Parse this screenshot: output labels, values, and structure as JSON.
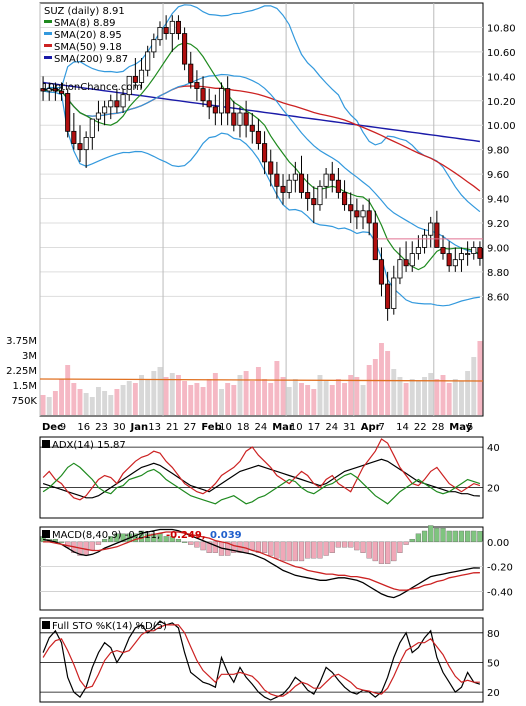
{
  "chart_data": [
    {
      "type": "candlestick",
      "title": "SUZ (daily) 8.91",
      "watermark": "10ptionChance.com",
      "legend": [
        {
          "label": "SMA(8) 8.89",
          "color": "#1f8a1f"
        },
        {
          "label": "SMA(20) 8.95",
          "color": "#3399dd"
        },
        {
          "label": "SMA(50) 9.18",
          "color": "#cc2222"
        },
        {
          "label": "SMA(200) 9.87",
          "color": "#1a1aa8"
        }
      ],
      "ylim": [
        8.3,
        11.0
      ],
      "price_ticks": [
        "10.80",
        "10.60",
        "10.40",
        "10.20",
        "10.00",
        "9.80",
        "9.60",
        "9.40",
        "9.20",
        "9.00",
        "8.80",
        "8.60"
      ],
      "volume_ticks": [
        "3.75M",
        "3M",
        "2.25M",
        "1.5M",
        "750K"
      ],
      "volume_ylim": [
        0,
        4000000
      ],
      "x_tick_labels": [
        "Dec",
        "9",
        "16",
        "23",
        "30",
        "Jan",
        "13",
        "21",
        "27",
        "Feb",
        "10",
        "18",
        "24",
        "Mar",
        "10",
        "17",
        "24",
        "31",
        "Apr",
        "7",
        "14",
        "22",
        "28",
        "May",
        "5"
      ],
      "candles": {
        "open": [
          10.3,
          10.28,
          10.3,
          10.28,
          10.26,
          9.95,
          9.85,
          9.8,
          9.9,
          10.05,
          10.1,
          10.15,
          10.2,
          10.15,
          10.25,
          10.4,
          10.35,
          10.45,
          10.6,
          10.7,
          10.8,
          10.75,
          10.85,
          10.75,
          10.5,
          10.35,
          10.3,
          10.2,
          10.15,
          10.1,
          10.3,
          10.1,
          10.0,
          10.1,
          10.0,
          9.95,
          9.85,
          9.7,
          9.6,
          9.5,
          9.45,
          9.55,
          9.6,
          9.45,
          9.4,
          9.35,
          9.5,
          9.6,
          9.55,
          9.45,
          9.35,
          9.3,
          9.25,
          9.3,
          9.2,
          8.9,
          8.7,
          8.5,
          8.75,
          8.9,
          8.85,
          8.95,
          9.0,
          9.1,
          9.2,
          9.0,
          8.95,
          8.85,
          8.9,
          8.95,
          8.95,
          9.0
        ],
        "high": [
          10.4,
          10.35,
          10.35,
          10.35,
          10.3,
          10.1,
          10.0,
          9.95,
          10.05,
          10.2,
          10.2,
          10.25,
          10.3,
          10.3,
          10.4,
          10.55,
          10.55,
          10.65,
          10.75,
          10.85,
          10.9,
          10.9,
          10.9,
          10.8,
          10.6,
          10.45,
          10.4,
          10.3,
          10.25,
          10.35,
          10.4,
          10.2,
          10.15,
          10.2,
          10.1,
          10.05,
          9.95,
          9.8,
          9.7,
          9.6,
          9.6,
          9.7,
          9.75,
          9.6,
          9.5,
          9.55,
          9.65,
          9.7,
          9.65,
          9.55,
          9.45,
          9.4,
          9.35,
          9.4,
          9.3,
          9.0,
          8.8,
          8.85,
          9.0,
          9.05,
          9.05,
          9.1,
          9.15,
          9.25,
          9.3,
          9.1,
          9.05,
          9.0,
          9.0,
          9.05,
          9.05,
          9.05
        ],
        "low": [
          10.2,
          10.2,
          10.2,
          10.2,
          9.9,
          9.8,
          9.7,
          9.65,
          9.8,
          9.95,
          10.0,
          10.05,
          10.1,
          10.1,
          10.2,
          10.3,
          10.3,
          10.4,
          10.55,
          10.65,
          10.7,
          10.6,
          10.7,
          10.45,
          10.3,
          10.2,
          10.15,
          10.05,
          10.0,
          10.0,
          10.0,
          9.95,
          9.9,
          9.9,
          9.85,
          9.8,
          9.6,
          9.5,
          9.4,
          9.35,
          9.4,
          9.45,
          9.4,
          9.3,
          9.2,
          9.3,
          9.4,
          9.45,
          9.4,
          9.3,
          9.2,
          9.15,
          9.15,
          9.1,
          8.9,
          8.6,
          8.4,
          8.45,
          8.7,
          8.8,
          8.8,
          8.9,
          8.95,
          9.0,
          9.0,
          8.9,
          8.8,
          8.8,
          8.8,
          8.85,
          8.9,
          8.85
        ],
        "close": [
          10.28,
          10.3,
          10.28,
          10.26,
          9.95,
          9.85,
          9.8,
          9.9,
          10.05,
          10.1,
          10.15,
          10.2,
          10.15,
          10.25,
          10.4,
          10.35,
          10.45,
          10.6,
          10.7,
          10.8,
          10.75,
          10.85,
          10.75,
          10.5,
          10.35,
          10.3,
          10.2,
          10.15,
          10.1,
          10.3,
          10.1,
          10.0,
          10.1,
          10.0,
          9.95,
          9.85,
          9.7,
          9.6,
          9.5,
          9.45,
          9.55,
          9.6,
          9.45,
          9.4,
          9.35,
          9.5,
          9.6,
          9.55,
          9.45,
          9.35,
          9.3,
          9.25,
          9.3,
          9.2,
          8.9,
          8.7,
          8.5,
          8.75,
          8.9,
          8.85,
          8.95,
          9.0,
          9.1,
          9.2,
          9.0,
          8.95,
          8.85,
          8.9,
          8.95,
          8.95,
          9.0,
          8.91
        ]
      },
      "volume_millions": [
        1.0,
        0.9,
        1.2,
        1.8,
        2.5,
        1.6,
        1.3,
        1.1,
        0.9,
        1.4,
        1.2,
        1.0,
        1.3,
        1.5,
        1.7,
        1.6,
        2.0,
        1.8,
        2.2,
        2.4,
        1.9,
        2.1,
        2.0,
        1.7,
        1.5,
        1.6,
        1.4,
        1.8,
        2.1,
        1.3,
        1.6,
        1.5,
        2.0,
        2.2,
        1.7,
        2.4,
        1.8,
        1.6,
        2.7,
        1.9,
        1.4,
        1.8,
        1.6,
        1.5,
        1.3,
        2.0,
        1.7,
        1.5,
        1.8,
        1.6,
        2.0,
        1.9,
        1.5,
        2.5,
        2.8,
        3.6,
        3.2,
        2.3,
        1.9,
        1.6,
        1.8,
        1.7,
        1.9,
        2.1,
        1.8,
        2.0,
        1.6,
        1.8,
        1.7,
        2.2,
        2.9,
        3.7
      ],
      "volume_avg_millions": 1.8
    },
    {
      "type": "line",
      "title": "ADX(14) 15.87",
      "ylim": [
        5,
        45
      ],
      "y_ticks": [
        "40",
        "20"
      ],
      "hlines": [
        20,
        40
      ],
      "series": [
        {
          "name": "ADX",
          "color": "#000000",
          "values": [
            22,
            21,
            20,
            19,
            18,
            17,
            16,
            15,
            15,
            16,
            18,
            20,
            22,
            24,
            26,
            28,
            30,
            31,
            32,
            31,
            29,
            27,
            25,
            23,
            21,
            20,
            19,
            18,
            20,
            22,
            24,
            26,
            28,
            29,
            30,
            31,
            30,
            29,
            28,
            27,
            26,
            25,
            24,
            23,
            22,
            21,
            22,
            24,
            26,
            28,
            29,
            30,
            31,
            32,
            33,
            34,
            33,
            31,
            29,
            27,
            25,
            23,
            22,
            21,
            20,
            19,
            18,
            18,
            17,
            17,
            16,
            15.87
          ]
        },
        {
          "name": "+DI",
          "color": "#cc2222",
          "values": [
            25,
            28,
            24,
            22,
            18,
            15,
            14,
            16,
            20,
            24,
            26,
            25,
            22,
            27,
            30,
            33,
            35,
            36,
            38,
            37,
            33,
            30,
            26,
            22,
            20,
            18,
            17,
            19,
            22,
            26,
            28,
            30,
            33,
            38,
            40,
            36,
            33,
            30,
            26,
            24,
            22,
            25,
            28,
            26,
            22,
            20,
            24,
            26,
            22,
            20,
            18,
            24,
            30,
            34,
            38,
            44,
            42,
            36,
            30,
            26,
            22,
            21,
            24,
            28,
            30,
            26,
            22,
            20,
            18,
            20,
            22,
            21
          ]
        },
        {
          "name": "-DI",
          "color": "#1f8a1f",
          "values": [
            18,
            20,
            23,
            26,
            30,
            32,
            30,
            27,
            24,
            20,
            18,
            17,
            20,
            21,
            24,
            25,
            26,
            28,
            29,
            27,
            24,
            22,
            20,
            18,
            16,
            15,
            14,
            13,
            12,
            14,
            15,
            16,
            14,
            12,
            13,
            15,
            16,
            18,
            20,
            22,
            24,
            23,
            20,
            18,
            17,
            19,
            21,
            22,
            24,
            26,
            27,
            25,
            22,
            19,
            16,
            14,
            12,
            15,
            18,
            20,
            22,
            24,
            22,
            20,
            18,
            17,
            18,
            20,
            22,
            24,
            23,
            22
          ]
        }
      ]
    },
    {
      "type": "bar+line",
      "title": "MACD(8,40,9) -0.211,",
      "macd_value": "-0.249,",
      "signal_value": "0.039",
      "macd_value_color": "#cc0000",
      "signal_value_color": "#1f5fcc",
      "ylim": [
        -0.55,
        0.12
      ],
      "y_ticks": [
        "0.00",
        "-0.20",
        "-0.40"
      ],
      "tick_values": [
        0.0,
        -0.2,
        -0.4
      ],
      "macd_line": [
        0.02,
        0.01,
        0.0,
        -0.02,
        -0.05,
        -0.08,
        -0.1,
        -0.11,
        -0.1,
        -0.08,
        -0.05,
        -0.03,
        -0.01,
        0.01,
        0.03,
        0.05,
        0.07,
        0.08,
        0.09,
        0.1,
        0.1,
        0.1,
        0.09,
        0.07,
        0.05,
        0.03,
        0.01,
        -0.01,
        -0.03,
        -0.05,
        -0.06,
        -0.07,
        -0.08,
        -0.09,
        -0.1,
        -0.12,
        -0.14,
        -0.17,
        -0.2,
        -0.23,
        -0.25,
        -0.27,
        -0.28,
        -0.29,
        -0.3,
        -0.31,
        -0.31,
        -0.3,
        -0.29,
        -0.29,
        -0.3,
        -0.31,
        -0.33,
        -0.36,
        -0.39,
        -0.42,
        -0.44,
        -0.45,
        -0.43,
        -0.4,
        -0.37,
        -0.34,
        -0.31,
        -0.28,
        -0.27,
        -0.26,
        -0.25,
        -0.24,
        -0.23,
        -0.22,
        -0.21,
        -0.211
      ],
      "signal_line": [
        0.0,
        0.0,
        -0.01,
        -0.02,
        -0.03,
        -0.04,
        -0.05,
        -0.06,
        -0.07,
        -0.07,
        -0.06,
        -0.05,
        -0.04,
        -0.02,
        0.0,
        0.02,
        0.03,
        0.05,
        0.06,
        0.07,
        0.08,
        0.08,
        0.08,
        0.07,
        0.06,
        0.05,
        0.04,
        0.03,
        0.01,
        0.0,
        -0.01,
        -0.03,
        -0.04,
        -0.05,
        -0.07,
        -0.08,
        -0.1,
        -0.12,
        -0.14,
        -0.16,
        -0.18,
        -0.2,
        -0.21,
        -0.23,
        -0.24,
        -0.25,
        -0.26,
        -0.26,
        -0.27,
        -0.27,
        -0.28,
        -0.28,
        -0.29,
        -0.3,
        -0.32,
        -0.34,
        -0.36,
        -0.38,
        -0.39,
        -0.39,
        -0.38,
        -0.37,
        -0.35,
        -0.34,
        -0.32,
        -0.31,
        -0.29,
        -0.28,
        -0.27,
        -0.26,
        -0.25,
        -0.249
      ],
      "histogram": [
        0.02,
        0.01,
        0.01,
        0.0,
        -0.02,
        -0.04,
        -0.05,
        -0.05,
        -0.03,
        -0.01,
        0.01,
        0.02,
        0.03,
        0.03,
        0.03,
        0.03,
        0.04,
        0.03,
        0.03,
        0.03,
        0.02,
        0.02,
        0.01,
        0.0,
        -0.01,
        -0.02,
        -0.03,
        -0.04,
        -0.04,
        -0.05,
        -0.05,
        -0.04,
        -0.04,
        -0.04,
        -0.03,
        -0.04,
        -0.04,
        -0.05,
        -0.06,
        -0.07,
        -0.07,
        -0.07,
        -0.07,
        -0.06,
        -0.06,
        -0.06,
        -0.05,
        -0.04,
        -0.02,
        -0.02,
        -0.02,
        -0.03,
        -0.04,
        -0.06,
        -0.07,
        -0.08,
        -0.08,
        -0.07,
        -0.04,
        -0.01,
        0.01,
        0.03,
        0.04,
        0.06,
        0.05,
        0.05,
        0.04,
        0.04,
        0.04,
        0.04,
        0.04,
        0.039
      ]
    },
    {
      "type": "line",
      "title": "Full STO %K(14) %D(5)",
      "ylim": [
        10,
        95
      ],
      "y_ticks": [
        "80",
        "50",
        "20"
      ],
      "hlines": [
        80,
        50,
        20
      ],
      "series": [
        {
          "name": "%K",
          "color": "#000000",
          "values": [
            60,
            75,
            82,
            70,
            35,
            20,
            15,
            25,
            45,
            60,
            70,
            65,
            50,
            60,
            75,
            85,
            88,
            80,
            85,
            92,
            88,
            90,
            85,
            60,
            40,
            35,
            30,
            28,
            25,
            55,
            40,
            30,
            45,
            35,
            28,
            20,
            15,
            12,
            15,
            18,
            25,
            35,
            30,
            22,
            18,
            30,
            45,
            40,
            32,
            25,
            20,
            18,
            22,
            20,
            15,
            20,
            35,
            55,
            70,
            80,
            60,
            65,
            75,
            82,
            55,
            40,
            30,
            20,
            25,
            40,
            30,
            28
          ]
        },
        {
          "name": "%D",
          "color": "#cc2222",
          "values": [
            55,
            65,
            72,
            74,
            62,
            48,
            32,
            24,
            26,
            38,
            52,
            60,
            62,
            60,
            62,
            70,
            78,
            82,
            82,
            86,
            88,
            88,
            88,
            80,
            66,
            52,
            42,
            36,
            30,
            38,
            38,
            38,
            40,
            38,
            36,
            30,
            22,
            18,
            16,
            16,
            20,
            26,
            30,
            28,
            24,
            24,
            30,
            36,
            38,
            34,
            30,
            24,
            22,
            21,
            19,
            18,
            24,
            36,
            50,
            62,
            66,
            70,
            70,
            74,
            66,
            58,
            46,
            36,
            30,
            32,
            30,
            30
          ]
        }
      ]
    }
  ]
}
